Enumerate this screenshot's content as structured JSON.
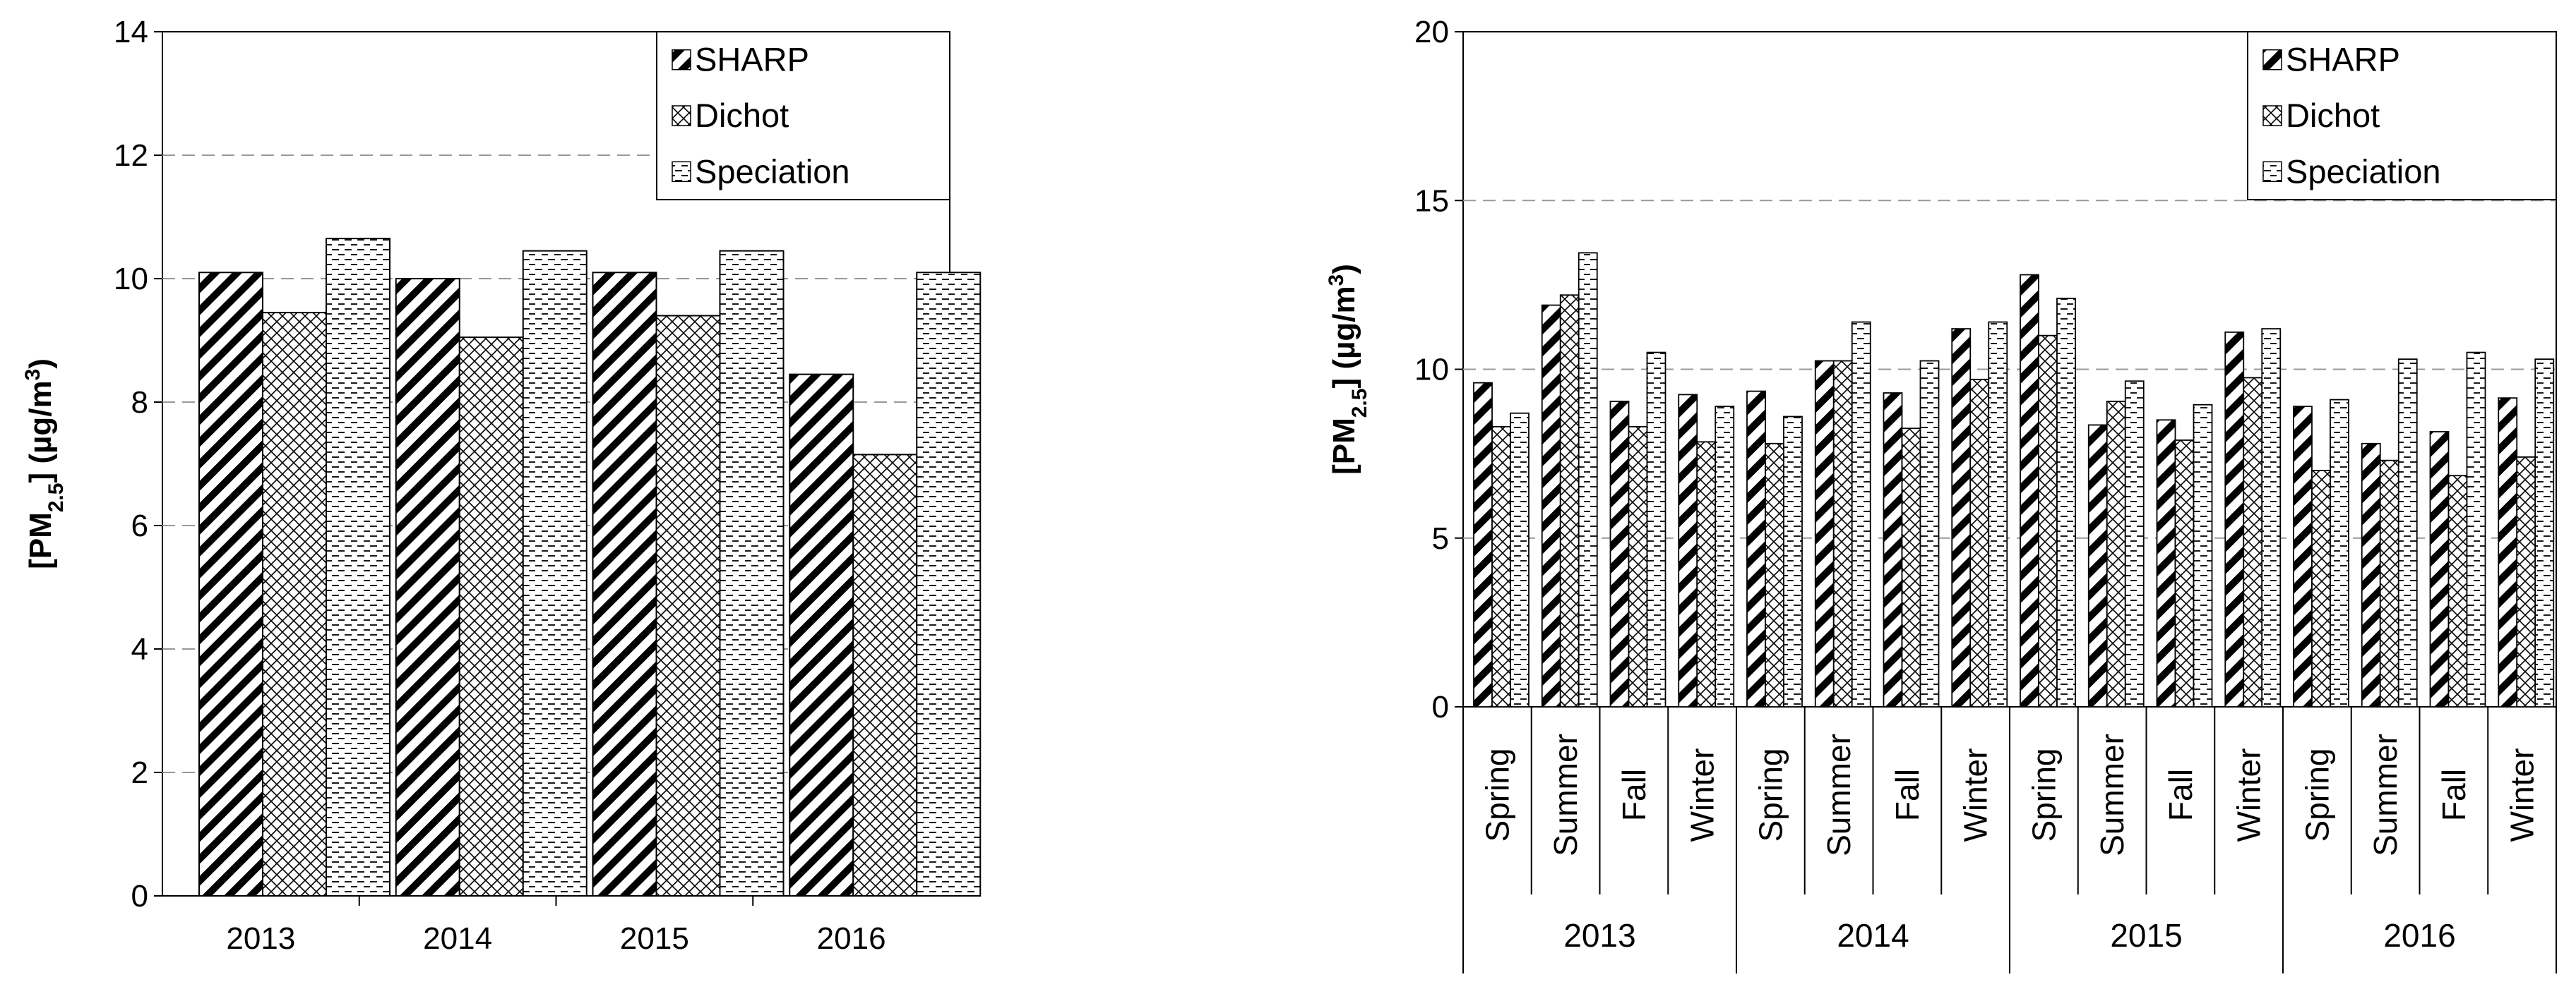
{
  "chart_data": [
    {
      "type": "bar",
      "title": "",
      "xlabel": "",
      "ylabel": "[PM2.5] (µg/m3)",
      "ylabel_parts": {
        "open": "[PM",
        "sub": "2.5",
        "mid": "] (µg/m",
        "sup": "3",
        "close": ")"
      },
      "ylim": [
        0,
        14
      ],
      "yticks": [
        "0",
        "2",
        "4",
        "6",
        "8",
        "10",
        "12",
        "14"
      ],
      "gridlines": "dashed horizontal",
      "legend_position": "top-right",
      "categories": [
        "2013",
        "2014",
        "2015",
        "2016"
      ],
      "series": [
        {
          "name": "SHARP",
          "pattern": "diagonal-hatch",
          "values": [
            10.1,
            10.0,
            10.1,
            8.45
          ]
        },
        {
          "name": "Dichot",
          "pattern": "crosshatch",
          "values": [
            9.45,
            9.05,
            9.4,
            7.15
          ]
        },
        {
          "name": "Speciation",
          "pattern": "dashes",
          "values": [
            10.65,
            10.45,
            10.45,
            10.1
          ]
        }
      ]
    },
    {
      "type": "bar",
      "title": "",
      "xlabel": "",
      "ylabel": "[PM2.5] (µg/m3)",
      "ylabel_parts": {
        "open": "[PM",
        "sub": "2.5",
        "mid": "] (µg/m",
        "sup": "3",
        "close": ")"
      },
      "ylim": [
        0,
        20
      ],
      "yticks": [
        "0",
        "5",
        "10",
        "15",
        "20"
      ],
      "gridlines": "dashed horizontal",
      "legend_position": "top-right",
      "groups": [
        "2013",
        "2014",
        "2015",
        "2016"
      ],
      "categories": [
        "Spring",
        "Summer",
        "Fall",
        "Winter",
        "Spring",
        "Summer",
        "Fall",
        "Winter",
        "Spring",
        "Summer",
        "Fall",
        "Winter",
        "Spring",
        "Summer",
        "Fall",
        "Winter"
      ],
      "series": [
        {
          "name": "SHARP",
          "pattern": "diagonal-hatch",
          "values": [
            9.6,
            11.9,
            9.05,
            9.25,
            9.35,
            10.25,
            9.3,
            11.2,
            12.8,
            8.35,
            8.5,
            11.1,
            8.9,
            7.8,
            8.15,
            9.15
          ]
        },
        {
          "name": "Dichot",
          "pattern": "crosshatch",
          "values": [
            8.3,
            12.2,
            8.3,
            7.85,
            7.8,
            10.25,
            8.25,
            9.7,
            11.0,
            9.05,
            7.9,
            9.75,
            7.0,
            7.3,
            6.85,
            7.4
          ]
        },
        {
          "name": "Speciation",
          "pattern": "dashes",
          "values": [
            8.7,
            13.45,
            10.5,
            8.9,
            8.6,
            11.4,
            10.25,
            11.4,
            12.1,
            9.65,
            8.95,
            11.2,
            9.1,
            10.3,
            10.5,
            10.3
          ]
        }
      ]
    }
  ]
}
